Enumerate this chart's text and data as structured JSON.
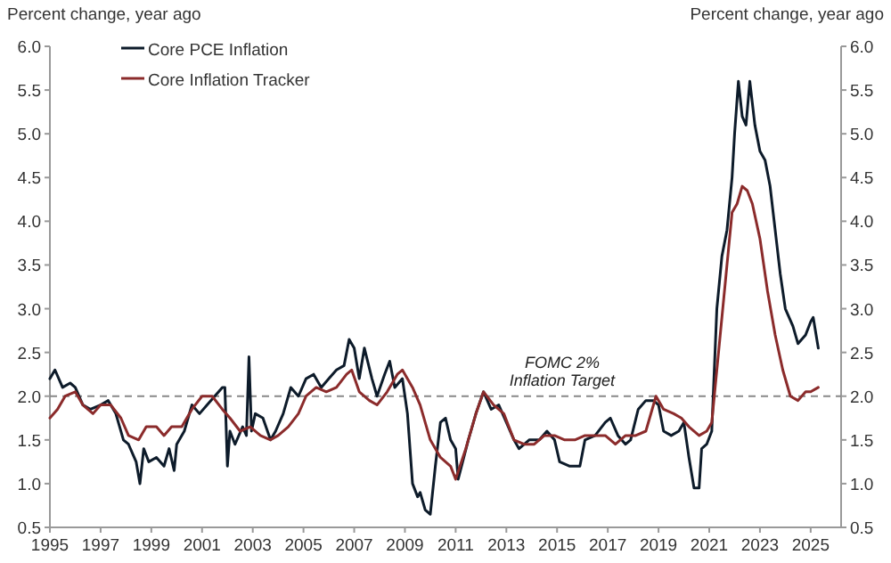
{
  "chart_data": {
    "type": "line",
    "ylabel": "Percent change, year ago",
    "y2label": "Percent change, year ago",
    "xlim": [
      1995,
      2026.2
    ],
    "xticks": [
      1995,
      1997,
      1999,
      2001,
      2003,
      2005,
      2007,
      2009,
      2011,
      2013,
      2015,
      2017,
      2019,
      2021,
      2023,
      2025
    ],
    "ylim": [
      0.5,
      6.0
    ],
    "yticks": [
      {
        "value": 0.5,
        "label": "0.5"
      },
      {
        "value": 1,
        "label": "1.0"
      },
      {
        "value": 1.5,
        "label": "1.5"
      },
      {
        "value": 2,
        "label": "2.0"
      },
      {
        "value": 2.5,
        "label": "2.5"
      },
      {
        "value": 3,
        "label": "3.0"
      },
      {
        "value": 3.5,
        "label": "3.5"
      },
      {
        "value": 4,
        "label": "4.0"
      },
      {
        "value": 4.5,
        "label": "4.5"
      },
      {
        "value": 5,
        "label": "5.0"
      },
      {
        "value": 5.5,
        "label": "5.5"
      },
      {
        "value": 6,
        "label": "6.0"
      }
    ],
    "y2lim": [
      0.5,
      6.0
    ],
    "y2ticks": [
      {
        "value": 0.5,
        "label": "0.5"
      },
      {
        "value": 1,
        "label": "1.0"
      },
      {
        "value": 1.5,
        "label": "1.5"
      },
      {
        "value": 2,
        "label": "2.0"
      },
      {
        "value": 2.5,
        "label": "2.5"
      },
      {
        "value": 3,
        "label": "3.0"
      },
      {
        "value": 3.5,
        "label": "3.5"
      },
      {
        "value": 4,
        "label": "4.0"
      },
      {
        "value": 4.5,
        "label": "4.5"
      },
      {
        "value": 5,
        "label": "5.0"
      },
      {
        "value": 5.5,
        "label": "5.5"
      },
      {
        "value": 6,
        "label": "6.0"
      }
    ],
    "grid": false,
    "legend": "top left",
    "line_style": "solid",
    "ref_lines": [
      {
        "axis": "y",
        "value": 2.0,
        "label": "FOMC 2%\nInflation Target",
        "color": "#888888",
        "line_style": "dashed"
      }
    ],
    "series": [
      {
        "name": "Core PCE Inflation",
        "color": "#0d1b2a",
        "x": [
          1995.0,
          1995.2,
          1995.5,
          1995.8,
          1996.0,
          1996.3,
          1996.6,
          1997.0,
          1997.3,
          1997.6,
          1997.9,
          1998.1,
          1998.4,
          1998.55,
          1998.7,
          1998.9,
          1999.2,
          1999.5,
          1999.7,
          1999.9,
          2000.0,
          2000.3,
          2000.6,
          2000.9,
          2001.2,
          2001.5,
          2001.8,
          2001.9,
          2002.0,
          2002.1,
          2002.3,
          2002.6,
          2002.75,
          2002.85,
          2002.95,
          2003.1,
          2003.4,
          2003.7,
          2003.9,
          2004.2,
          2004.5,
          2004.8,
          2005.1,
          2005.4,
          2005.7,
          2006.0,
          2006.3,
          2006.6,
          2006.8,
          2007.0,
          2007.2,
          2007.4,
          2007.7,
          2007.9,
          2008.2,
          2008.4,
          2008.6,
          2008.9,
          2009.1,
          2009.3,
          2009.5,
          2009.6,
          2009.8,
          2010.0,
          2010.2,
          2010.4,
          2010.6,
          2010.8,
          2011.0,
          2011.1,
          2011.5,
          2011.8,
          2012.1,
          2012.4,
          2012.7,
          2013.0,
          2013.3,
          2013.5,
          2013.9,
          2014.3,
          2014.6,
          2014.9,
          2015.1,
          2015.5,
          2015.9,
          2016.1,
          2016.5,
          2016.9,
          2017.1,
          2017.4,
          2017.7,
          2017.9,
          2018.2,
          2018.5,
          2018.8,
          2019.0,
          2019.2,
          2019.5,
          2019.8,
          2020.0,
          2020.2,
          2020.4,
          2020.6,
          2020.7,
          2020.9,
          2021.1,
          2021.3,
          2021.5,
          2021.7,
          2021.9,
          2022.0,
          2022.15,
          2022.3,
          2022.45,
          2022.6,
          2022.8,
          2023.0,
          2023.2,
          2023.4,
          2023.6,
          2023.8,
          2024.0,
          2024.3,
          2024.5,
          2024.8,
          2025.0,
          2025.1,
          2025.3
        ],
        "values": [
          2.2,
          2.3,
          2.1,
          2.15,
          2.1,
          1.9,
          1.85,
          1.9,
          1.95,
          1.8,
          1.5,
          1.45,
          1.25,
          1.0,
          1.4,
          1.25,
          1.3,
          1.2,
          1.4,
          1.15,
          1.45,
          1.6,
          1.9,
          1.8,
          1.9,
          2.0,
          2.1,
          2.1,
          1.2,
          1.6,
          1.45,
          1.65,
          1.55,
          2.45,
          1.6,
          1.8,
          1.75,
          1.5,
          1.6,
          1.8,
          2.1,
          2.0,
          2.2,
          2.25,
          2.1,
          2.2,
          2.3,
          2.35,
          2.65,
          2.55,
          2.2,
          2.55,
          2.2,
          2.0,
          2.25,
          2.4,
          2.1,
          2.2,
          1.8,
          1.0,
          0.85,
          0.9,
          0.7,
          0.65,
          1.2,
          1.7,
          1.75,
          1.5,
          1.4,
          1.05,
          1.5,
          1.8,
          2.05,
          1.85,
          1.9,
          1.7,
          1.5,
          1.4,
          1.5,
          1.5,
          1.6,
          1.5,
          1.25,
          1.2,
          1.2,
          1.5,
          1.55,
          1.7,
          1.75,
          1.55,
          1.45,
          1.5,
          1.85,
          1.95,
          1.95,
          1.9,
          1.6,
          1.55,
          1.6,
          1.7,
          1.3,
          0.95,
          0.95,
          1.4,
          1.45,
          1.6,
          3.0,
          3.6,
          3.9,
          4.5,
          5.0,
          5.6,
          5.2,
          5.1,
          5.6,
          5.1,
          4.8,
          4.7,
          4.4,
          3.9,
          3.4,
          3.0,
          2.8,
          2.6,
          2.7,
          2.85,
          2.9,
          2.55
        ]
      },
      {
        "name": "Core Inflation Tracker",
        "color": "#8b2b2b",
        "x": [
          1995.0,
          1995.3,
          1995.6,
          1996.0,
          1996.3,
          1996.7,
          1997.0,
          1997.4,
          1997.8,
          1998.1,
          1998.5,
          1998.8,
          1999.2,
          1999.5,
          1999.8,
          2000.2,
          2000.6,
          2001.0,
          2001.4,
          2001.8,
          2002.1,
          2002.5,
          2002.9,
          2003.3,
          2003.7,
          2004.0,
          2004.4,
          2004.8,
          2005.1,
          2005.5,
          2005.9,
          2006.3,
          2006.7,
          2006.9,
          2007.2,
          2007.6,
          2007.9,
          2008.3,
          2008.7,
          2008.9,
          2009.3,
          2009.6,
          2010.0,
          2010.4,
          2010.8,
          2011.0,
          2011.4,
          2011.8,
          2012.1,
          2012.5,
          2012.9,
          2013.3,
          2013.7,
          2014.1,
          2014.5,
          2014.9,
          2015.3,
          2015.7,
          2016.1,
          2016.5,
          2016.9,
          2017.3,
          2017.7,
          2018.1,
          2018.5,
          2018.9,
          2019.2,
          2019.6,
          2019.9,
          2020.2,
          2020.6,
          2020.9,
          2021.1,
          2021.4,
          2021.7,
          2021.9,
          2022.1,
          2022.3,
          2022.5,
          2022.7,
          2023.0,
          2023.3,
          2023.6,
          2023.9,
          2024.2,
          2024.5,
          2024.8,
          2025.0,
          2025.3
        ],
        "values": [
          1.75,
          1.85,
          2.0,
          2.05,
          1.9,
          1.8,
          1.9,
          1.9,
          1.75,
          1.55,
          1.5,
          1.65,
          1.65,
          1.55,
          1.65,
          1.65,
          1.85,
          2.0,
          2.0,
          1.85,
          1.75,
          1.6,
          1.65,
          1.55,
          1.5,
          1.55,
          1.65,
          1.8,
          2.0,
          2.1,
          2.05,
          2.1,
          2.25,
          2.3,
          2.05,
          1.95,
          1.9,
          2.05,
          2.25,
          2.3,
          2.1,
          1.9,
          1.5,
          1.3,
          1.2,
          1.05,
          1.4,
          1.8,
          2.05,
          1.9,
          1.8,
          1.5,
          1.45,
          1.45,
          1.55,
          1.55,
          1.5,
          1.5,
          1.55,
          1.55,
          1.55,
          1.45,
          1.55,
          1.55,
          1.6,
          2.0,
          1.85,
          1.8,
          1.75,
          1.65,
          1.55,
          1.6,
          1.7,
          2.6,
          3.5,
          4.1,
          4.2,
          4.4,
          4.35,
          4.2,
          3.8,
          3.2,
          2.7,
          2.3,
          2.0,
          1.95,
          2.05,
          2.05,
          2.1
        ]
      }
    ]
  }
}
